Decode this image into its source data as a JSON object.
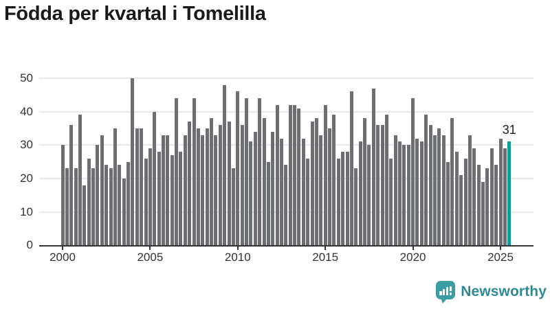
{
  "header": {
    "title": "Födda per kvartal i Tomelilla"
  },
  "chart_data": {
    "type": "bar",
    "title": "Födda per kvartal i Tomelilla",
    "start_quarter": "2000-Q1",
    "end_quarter": "2025-Q3",
    "values": [
      30,
      23,
      36,
      23,
      39,
      18,
      26,
      23,
      30,
      33,
      24,
      23,
      35,
      24,
      20,
      25,
      50,
      35,
      35,
      26,
      29,
      40,
      28,
      33,
      33,
      27,
      44,
      28,
      33,
      37,
      44,
      35,
      33,
      35,
      38,
      33,
      36,
      48,
      37,
      23,
      46,
      36,
      44,
      31,
      34,
      44,
      38,
      25,
      34,
      42,
      32,
      24,
      42,
      42,
      41,
      32,
      26,
      37,
      38,
      33,
      42,
      35,
      39,
      26,
      28,
      28,
      46,
      23,
      31,
      38,
      30,
      47,
      36,
      36,
      39,
      26,
      33,
      31,
      30,
      30,
      44,
      32,
      31,
      39,
      36,
      33,
      35,
      33,
      25,
      38,
      28,
      21,
      26,
      33,
      29,
      24,
      19,
      23,
      29,
      24,
      32,
      29,
      31
    ],
    "highlight_index": 102,
    "highlight_value": 31,
    "annotation": "31",
    "x_axis": {
      "tick_labels": [
        "2000",
        "2005",
        "2010",
        "2015",
        "2020",
        "2025"
      ]
    },
    "y_axis": {
      "ticks": [
        0,
        10,
        20,
        30,
        40,
        50
      ],
      "ylim": [
        0,
        50
      ]
    },
    "grid": true,
    "legend": false,
    "colors": {
      "bar": "#6d6e71",
      "highlight": "#13999e",
      "grid": "#e8e8e8",
      "axis": "#343434",
      "tick_label": "#333333",
      "title": "#1a1a1a",
      "annotation": "#1a1a1a"
    }
  },
  "logo": {
    "text": "Newsworthy",
    "icon": "newsworthy-speech-bubble-bar-chart-icon",
    "icon_color": "#3b9ca1",
    "text_color": "#2e8a94"
  }
}
